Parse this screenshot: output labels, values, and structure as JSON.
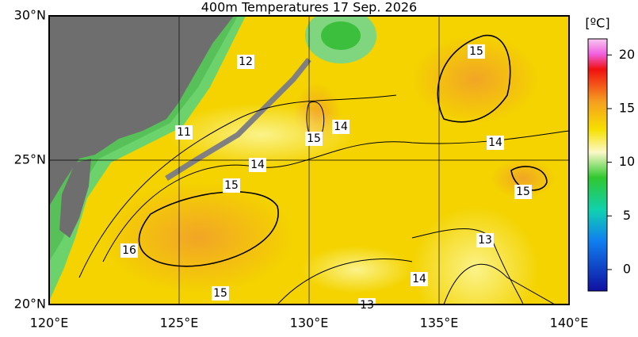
{
  "title": "400m Temperatures  17 Sep. 2026",
  "lon_ticks": [
    {
      "value": 120,
      "label": "120°E"
    },
    {
      "value": 125,
      "label": "125°E"
    },
    {
      "value": 130,
      "label": "130°E"
    },
    {
      "value": 135,
      "label": "135°E"
    },
    {
      "value": 140,
      "label": "140°E"
    }
  ],
  "lat_ticks": [
    {
      "value": 20,
      "label": "20°N"
    },
    {
      "value": 25,
      "label": "25°N"
    },
    {
      "value": 30,
      "label": "30°N"
    }
  ],
  "colorbar": {
    "label": "[ºC]",
    "range": [
      -2,
      21.5
    ],
    "ticks": [
      0,
      5,
      10,
      15,
      20
    ]
  },
  "contour_labels": [
    12,
    11,
    15,
    14,
    14,
    15,
    16,
    15,
    14,
    13,
    15,
    14,
    15,
    13
  ]
}
